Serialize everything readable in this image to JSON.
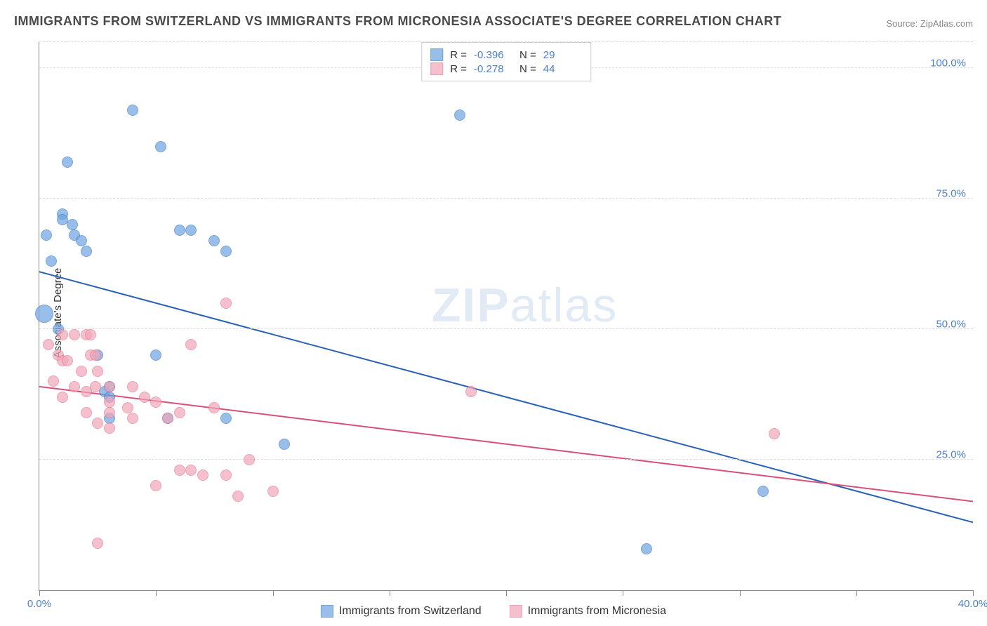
{
  "title": "IMMIGRANTS FROM SWITZERLAND VS IMMIGRANTS FROM MICRONESIA ASSOCIATE'S DEGREE CORRELATION CHART",
  "source": "Source: ZipAtlas.com",
  "watermark_bold": "ZIP",
  "watermark_thin": "atlas",
  "chart": {
    "type": "scatter",
    "background_color": "#ffffff",
    "grid_color": "#dddddd",
    "xlim": [
      0,
      40
    ],
    "ylim": [
      0,
      105
    ],
    "xticks": [
      0,
      5,
      10,
      15,
      20,
      25,
      30,
      35,
      40
    ],
    "yticks": [
      25,
      50,
      75,
      100
    ],
    "xtick_labels": {
      "0": "0.0%",
      "40": "40.0%"
    },
    "ytick_labels": {
      "25": "25.0%",
      "50": "50.0%",
      "75": "75.0%",
      "100": "100.0%"
    },
    "ylabel": "Associate's Degree",
    "ylabel_fontsize": 15,
    "tick_label_color": "#4a7fcf",
    "tick_label_fontsize": 15,
    "point_radius": 8,
    "point_stroke_width": 1.5,
    "point_fill_opacity": 0.35,
    "trend_line_width": 2,
    "series": [
      {
        "name": "Immigrants from Switzerland",
        "color": "#6fa3e0",
        "stroke": "#3f7fc9",
        "trend_color": "#2a62b5",
        "R": "-0.396",
        "N": "29",
        "trend": {
          "x1": 0,
          "y1": 61,
          "x2": 40,
          "y2": 13
        },
        "points": [
          {
            "x": 0.3,
            "y": 68
          },
          {
            "x": 0.5,
            "y": 63
          },
          {
            "x": 1.0,
            "y": 72
          },
          {
            "x": 1.0,
            "y": 71
          },
          {
            "x": 1.4,
            "y": 70
          },
          {
            "x": 1.5,
            "y": 68
          },
          {
            "x": 1.8,
            "y": 67
          },
          {
            "x": 1.2,
            "y": 82
          },
          {
            "x": 0.2,
            "y": 53,
            "r": 13
          },
          {
            "x": 0.8,
            "y": 50
          },
          {
            "x": 2.0,
            "y": 65
          },
          {
            "x": 4.0,
            "y": 92
          },
          {
            "x": 5.2,
            "y": 85
          },
          {
            "x": 6.0,
            "y": 69
          },
          {
            "x": 6.5,
            "y": 69
          },
          {
            "x": 5.0,
            "y": 45
          },
          {
            "x": 7.5,
            "y": 67
          },
          {
            "x": 8.0,
            "y": 65
          },
          {
            "x": 2.5,
            "y": 45
          },
          {
            "x": 2.8,
            "y": 38
          },
          {
            "x": 3.0,
            "y": 39
          },
          {
            "x": 3.0,
            "y": 33
          },
          {
            "x": 3.0,
            "y": 37
          },
          {
            "x": 5.5,
            "y": 33
          },
          {
            "x": 8.0,
            "y": 33
          },
          {
            "x": 10.5,
            "y": 28
          },
          {
            "x": 18.0,
            "y": 91
          },
          {
            "x": 26.0,
            "y": 8
          },
          {
            "x": 31.0,
            "y": 19
          }
        ]
      },
      {
        "name": "Immigrants from Micronesia",
        "color": "#f2a6b8",
        "stroke": "#e67a96",
        "trend_color": "#d94f78",
        "R": "-0.278",
        "N": "44",
        "trend": {
          "x1": 0,
          "y1": 39,
          "x2": 40,
          "y2": 17
        },
        "points": [
          {
            "x": 0.4,
            "y": 47
          },
          {
            "x": 0.8,
            "y": 45
          },
          {
            "x": 1.0,
            "y": 49
          },
          {
            "x": 1.5,
            "y": 49
          },
          {
            "x": 2.0,
            "y": 49
          },
          {
            "x": 2.2,
            "y": 49
          },
          {
            "x": 1.0,
            "y": 44
          },
          {
            "x": 1.2,
            "y": 44
          },
          {
            "x": 1.8,
            "y": 42
          },
          {
            "x": 2.2,
            "y": 45
          },
          {
            "x": 2.4,
            "y": 45
          },
          {
            "x": 2.5,
            "y": 42
          },
          {
            "x": 0.6,
            "y": 40
          },
          {
            "x": 1.0,
            "y": 37
          },
          {
            "x": 1.5,
            "y": 39
          },
          {
            "x": 2.0,
            "y": 38
          },
          {
            "x": 2.4,
            "y": 39
          },
          {
            "x": 3.0,
            "y": 39
          },
          {
            "x": 3.0,
            "y": 36
          },
          {
            "x": 4.0,
            "y": 39
          },
          {
            "x": 4.5,
            "y": 37
          },
          {
            "x": 5.0,
            "y": 36
          },
          {
            "x": 2.0,
            "y": 34
          },
          {
            "x": 2.5,
            "y": 32
          },
          {
            "x": 3.0,
            "y": 31
          },
          {
            "x": 3.0,
            "y": 34
          },
          {
            "x": 3.8,
            "y": 35
          },
          {
            "x": 4.0,
            "y": 33
          },
          {
            "x": 5.5,
            "y": 33
          },
          {
            "x": 6.0,
            "y": 34
          },
          {
            "x": 7.5,
            "y": 35
          },
          {
            "x": 6.5,
            "y": 47
          },
          {
            "x": 8.0,
            "y": 55
          },
          {
            "x": 9.0,
            "y": 25
          },
          {
            "x": 5.0,
            "y": 20
          },
          {
            "x": 6.0,
            "y": 23
          },
          {
            "x": 6.5,
            "y": 23
          },
          {
            "x": 7.0,
            "y": 22
          },
          {
            "x": 8.0,
            "y": 22
          },
          {
            "x": 8.5,
            "y": 18
          },
          {
            "x": 10.0,
            "y": 19
          },
          {
            "x": 2.5,
            "y": 9
          },
          {
            "x": 18.5,
            "y": 38
          },
          {
            "x": 31.5,
            "y": 30
          }
        ]
      }
    ]
  },
  "legend_top": {
    "R_label": "R =",
    "N_label": "N ="
  },
  "legend_bottom": {}
}
